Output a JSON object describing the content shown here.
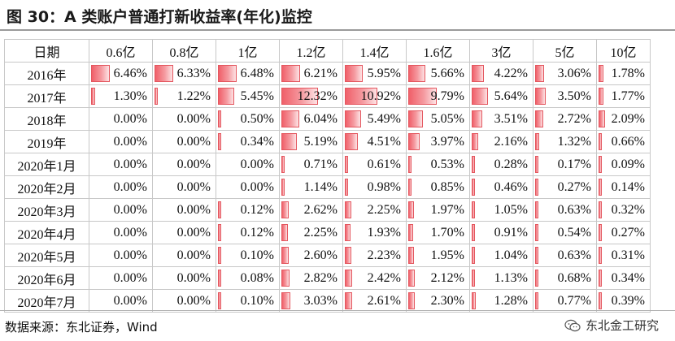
{
  "title": "图 30：A 类账户普通打新收益率(年化)监控",
  "source": "数据来源：东北证券，Wind",
  "watermark": "东北金工研究",
  "watermark_icon": "wechat-icon",
  "bar_color": "#f0606a",
  "chart_data": {
    "type": "table",
    "corner_header": "日期",
    "columns": [
      "0.6亿",
      "0.8亿",
      "1亿",
      "1.2亿",
      "1.4亿",
      "1.6亿",
      "3亿",
      "5亿",
      "10亿"
    ],
    "rows": [
      {
        "label": "2016年",
        "values": [
          "6.46%",
          "6.33%",
          "6.48%",
          "6.21%",
          "5.95%",
          "5.66%",
          "4.22%",
          "3.06%",
          "1.78%"
        ]
      },
      {
        "label": "2017年",
        "values": [
          "1.30%",
          "1.22%",
          "5.45%",
          "12.32%",
          "10.92%",
          "9.79%",
          "5.64%",
          "3.50%",
          "1.77%"
        ]
      },
      {
        "label": "2018年",
        "values": [
          "0.00%",
          "0.00%",
          "0.50%",
          "6.04%",
          "5.49%",
          "5.05%",
          "3.51%",
          "2.72%",
          "2.09%"
        ]
      },
      {
        "label": "2019年",
        "values": [
          "0.00%",
          "0.00%",
          "0.34%",
          "5.19%",
          "4.51%",
          "3.97%",
          "2.16%",
          "1.32%",
          "0.66%"
        ]
      },
      {
        "label": "2020年1月",
        "values": [
          "0.00%",
          "0.00%",
          "0.00%",
          "0.71%",
          "0.61%",
          "0.53%",
          "0.28%",
          "0.17%",
          "0.09%"
        ]
      },
      {
        "label": "2020年2月",
        "values": [
          "0.00%",
          "0.00%",
          "0.00%",
          "1.14%",
          "0.98%",
          "0.85%",
          "0.46%",
          "0.27%",
          "0.14%"
        ]
      },
      {
        "label": "2020年3月",
        "values": [
          "0.00%",
          "0.00%",
          "0.12%",
          "2.62%",
          "2.25%",
          "1.97%",
          "1.05%",
          "0.63%",
          "0.32%"
        ]
      },
      {
        "label": "2020年4月",
        "values": [
          "0.00%",
          "0.00%",
          "0.12%",
          "2.25%",
          "1.93%",
          "1.70%",
          "0.91%",
          "0.54%",
          "0.27%"
        ]
      },
      {
        "label": "2020年5月",
        "values": [
          "0.00%",
          "0.00%",
          "0.10%",
          "2.60%",
          "2.23%",
          "1.95%",
          "1.04%",
          "0.63%",
          "0.31%"
        ]
      },
      {
        "label": "2020年6月",
        "values": [
          "0.00%",
          "0.00%",
          "0.08%",
          "2.82%",
          "2.42%",
          "2.12%",
          "1.13%",
          "0.68%",
          "0.34%"
        ]
      },
      {
        "label": "2020年7月",
        "values": [
          "0.00%",
          "0.00%",
          "0.10%",
          "3.03%",
          "2.61%",
          "2.30%",
          "1.28%",
          "0.77%",
          "0.39%"
        ]
      }
    ],
    "data_bars": true,
    "data_bar_max": 12.32
  }
}
